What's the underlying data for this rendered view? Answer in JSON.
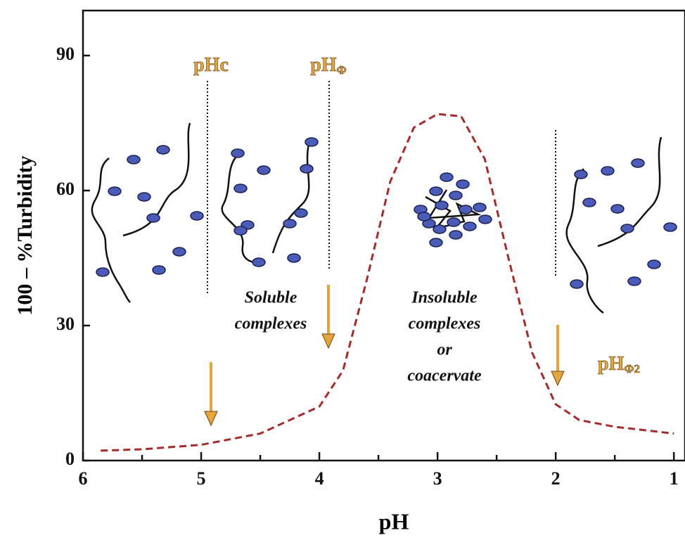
{
  "chart_data": {
    "type": "line",
    "xlabel": "pH",
    "ylabel": "100 – %Turbidity",
    "x": [
      5.85,
      5.5,
      5.0,
      4.5,
      4.0,
      3.8,
      3.6,
      3.4,
      3.2,
      3.0,
      2.8,
      2.6,
      2.4,
      2.2,
      2.0,
      1.8,
      1.5,
      1.0
    ],
    "series": [
      {
        "color": "#a52a2a",
        "values": [
          2.2,
          2.5,
          3.5,
          6,
          12,
          20,
          40,
          62,
          74,
          77,
          76.5,
          67,
          45,
          24,
          12.5,
          9,
          7.5,
          6
        ]
      }
    ],
    "xlim": [
      6,
      0.9
    ],
    "xticks": [
      6,
      5,
      4,
      3,
      2,
      1
    ],
    "xminorticks": [
      5.5,
      4.5,
      3.5,
      2.5,
      1.5
    ],
    "ylim": [
      0,
      100
    ],
    "yticks": [
      0,
      30,
      60,
      90
    ],
    "annotations": [
      {
        "text": "pHc"
      },
      {
        "text": "pH",
        "sub": "Φ"
      },
      {
        "text": "pH",
        "sub": "Φ2"
      },
      {
        "lines": [
          "Soluble",
          "complexes"
        ]
      },
      {
        "lines": [
          "Insoluble",
          "complexes",
          "or",
          "coacervate"
        ]
      }
    ]
  }
}
